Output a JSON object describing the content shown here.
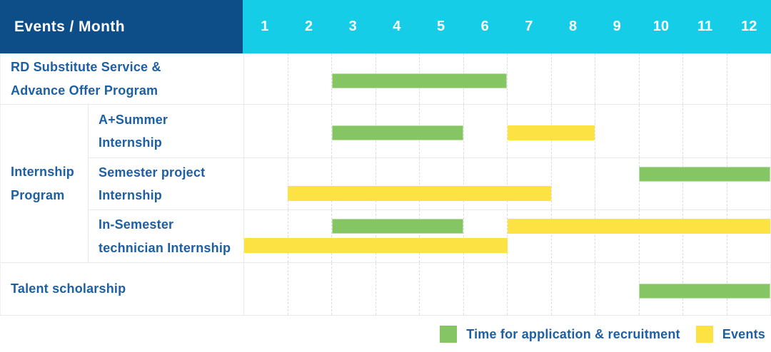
{
  "header": {
    "title": "Events / Month",
    "months": [
      "1",
      "2",
      "3",
      "4",
      "5",
      "6",
      "7",
      "8",
      "9",
      "10",
      "11",
      "12"
    ]
  },
  "rows": {
    "rd": {
      "label": "RD Substitute Service &\nAdvance Offer Program"
    },
    "talent": {
      "label": "Talent scholarship"
    }
  },
  "group": {
    "label": "Internship\nProgram",
    "rows": [
      {
        "label": "A+Summer\nInternship"
      },
      {
        "label": "Semester project\nInternship"
      },
      {
        "label": "In-Semester\ntechnician Internship"
      }
    ]
  },
  "legend": {
    "items": [
      {
        "label": "Time for application & recruitment",
        "color": "green"
      },
      {
        "label": "Events",
        "color": "yellow"
      }
    ]
  },
  "colors": {
    "navy": "#0d4e89",
    "cyan": "#16cde7",
    "green": "#85c563",
    "yellow": "#fde243",
    "label_blue": "#1d5fa5",
    "grid": "#dcdcdc",
    "row_border": "#e9e9e9"
  },
  "chart_data": {
    "type": "gantt",
    "x_categories": [
      "1",
      "2",
      "3",
      "4",
      "5",
      "6",
      "7",
      "8",
      "9",
      "10",
      "11",
      "12"
    ],
    "x_axis_label": "Month",
    "row_names": [
      "RD Substitute Service & Advance Offer Program",
      "A+Summer Internship",
      "Semester project Internship",
      "In-Semester technician Internship",
      "Talent scholarship"
    ],
    "series_legend": {
      "green": "Time for application & recruitment",
      "yellow": "Events"
    },
    "bars": [
      {
        "row_index": 0,
        "row": "RD Substitute Service & Advance Offer Program",
        "series": "Time for application & recruitment",
        "color": "green",
        "start_month": 3,
        "end_month": 6,
        "lane": "single"
      },
      {
        "row_index": 1,
        "row": "A+Summer Internship",
        "series": "Time for application & recruitment",
        "color": "green",
        "start_month": 3,
        "end_month": 5,
        "lane": "single"
      },
      {
        "row_index": 1,
        "row": "A+Summer Internship",
        "series": "Events",
        "color": "yellow",
        "start_month": 7,
        "end_month": 8,
        "lane": "single"
      },
      {
        "row_index": 2,
        "row": "Semester project Internship",
        "series": "Time for application & recruitment",
        "color": "green",
        "start_month": 10,
        "end_month": 12,
        "lane": "top"
      },
      {
        "row_index": 2,
        "row": "Semester project Internship",
        "series": "Events",
        "color": "yellow",
        "start_month": 2,
        "end_month": 7,
        "lane": "bottom"
      },
      {
        "row_index": 3,
        "row": "In-Semester technician Internship",
        "series": "Time for application & recruitment",
        "color": "green",
        "start_month": 3,
        "end_month": 5,
        "lane": "top"
      },
      {
        "row_index": 3,
        "row": "In-Semester technician Internship",
        "series": "Events",
        "color": "yellow",
        "start_month": 7,
        "end_month": 12,
        "lane": "top"
      },
      {
        "row_index": 3,
        "row": "In-Semester technician Internship",
        "series": "Events",
        "color": "yellow",
        "start_month": 1,
        "end_month": 6,
        "lane": "bottom"
      },
      {
        "row_index": 4,
        "row": "Talent scholarship",
        "series": "Time for application & recruitment",
        "color": "green",
        "start_month": 10,
        "end_month": 12,
        "lane": "single"
      }
    ]
  }
}
